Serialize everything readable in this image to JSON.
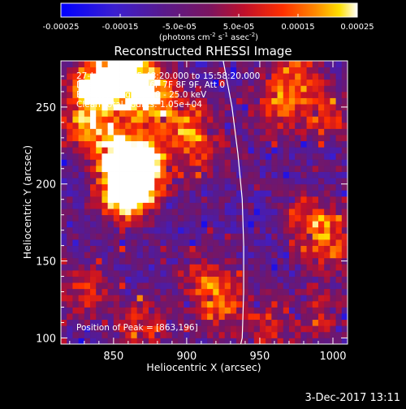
{
  "chart_data": {
    "type": "heatmap",
    "title": "Reconstructed RHESSI Image",
    "xlabel": "Heliocentric X (arcsec)",
    "ylabel": "Heliocentric Y (arcsec)",
    "xlim": [
      814,
      1010
    ],
    "ylim": [
      96,
      280
    ],
    "xticks": [
      850,
      900,
      950,
      1000
    ],
    "yticks": [
      100,
      150,
      200,
      250
    ],
    "colorbar": {
      "ticks": [
        -0.00025,
        -0.00015,
        -5e-05,
        5e-05,
        0.00015,
        0.00025
      ],
      "tick_labels": [
        "-0.00025",
        "-0.00015",
        "-5.0e-05",
        "5.0e-05",
        "0.00015",
        "0.00025"
      ],
      "range": [
        -0.00025,
        0.00025
      ],
      "unit_text": "(photons cm",
      "unit_sup1": "-2",
      "unit_mid": " s",
      "unit_sup2": "-1",
      "unit_mid2": " asec",
      "unit_sup3": "-2",
      "unit_end": ")"
    },
    "annotations": [
      "27-Jun-2015 15:48:20.000 to 15:58:20.000",
      "Detectors: 3F 5F 6F 7F 8F 9F, Att 0",
      "Energy Range: 12.0 - 25.0 keV",
      "Clean    Total counts: 1.05e+04"
    ],
    "peak_label": "Position of Peak = [863,196]",
    "peak": [
      863,
      196
    ],
    "solar_limb": [
      [
        925,
        280
      ],
      [
        931,
        250
      ],
      [
        935,
        220
      ],
      [
        938,
        190
      ],
      [
        939,
        160
      ],
      [
        939,
        130
      ],
      [
        938,
        100
      ],
      [
        937,
        96
      ]
    ],
    "hotspots": [
      {
        "x": 840,
        "y": 265,
        "amp": 0.82
      },
      {
        "x": 862,
        "y": 270,
        "amp": 0.72
      },
      {
        "x": 875,
        "y": 255,
        "amp": 0.55
      },
      {
        "x": 863,
        "y": 205,
        "amp": 0.9
      },
      {
        "x": 858,
        "y": 195,
        "amp": 0.75
      },
      {
        "x": 872,
        "y": 215,
        "amp": 0.5
      },
      {
        "x": 850,
        "y": 225,
        "amp": 0.45
      },
      {
        "x": 830,
        "y": 240,
        "amp": 0.45
      },
      {
        "x": 900,
        "y": 240,
        "amp": 0.4
      },
      {
        "x": 910,
        "y": 220,
        "amp": 0.3
      },
      {
        "x": 960,
        "y": 250,
        "amp": 0.35
      },
      {
        "x": 975,
        "y": 270,
        "amp": 0.4
      },
      {
        "x": 995,
        "y": 245,
        "amp": 0.35
      },
      {
        "x": 985,
        "y": 175,
        "amp": 0.4
      },
      {
        "x": 1000,
        "y": 160,
        "amp": 0.3
      },
      {
        "x": 915,
        "y": 135,
        "amp": 0.35
      },
      {
        "x": 925,
        "y": 120,
        "amp": 0.3
      },
      {
        "x": 870,
        "y": 110,
        "amp": 0.3
      },
      {
        "x": 830,
        "y": 130,
        "amp": 0.3
      },
      {
        "x": 955,
        "y": 105,
        "amp": 0.25
      },
      {
        "x": 990,
        "y": 115,
        "amp": 0.25
      }
    ]
  },
  "footer": {
    "date": "3-Dec-2017 13:11"
  }
}
